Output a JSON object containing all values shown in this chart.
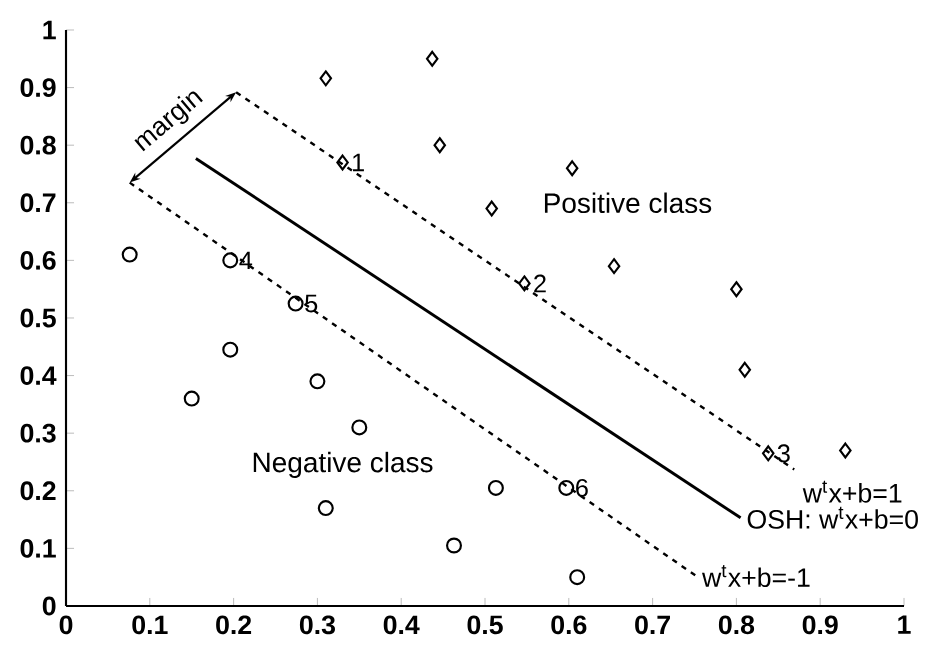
{
  "chart_data": {
    "type": "scatter",
    "xlim": [
      0,
      1
    ],
    "ylim": [
      0,
      1
    ],
    "xticks": [
      0,
      0.1,
      0.2,
      0.3,
      0.4,
      0.5,
      0.6,
      0.7,
      0.8,
      0.9,
      1
    ],
    "yticks": [
      0,
      0.1,
      0.2,
      0.3,
      0.4,
      0.5,
      0.6,
      0.7,
      0.8,
      0.9,
      1
    ],
    "series": [
      {
        "marker": "diamond",
        "color": "#000000",
        "x": [
          0.31,
          0.437,
          0.446,
          0.33,
          0.604,
          0.508,
          0.654,
          0.547,
          0.8,
          0.81,
          0.838,
          0.93
        ],
        "values": [
          0.916,
          0.95,
          0.8,
          0.77,
          0.76,
          0.69,
          0.59,
          0.56,
          0.55,
          0.41,
          0.265,
          0.27
        ]
      },
      {
        "marker": "circle",
        "color": "#000000",
        "x": [
          0.076,
          0.196,
          0.274,
          0.196,
          0.15,
          0.3,
          0.35,
          0.31,
          0.463,
          0.513,
          0.597,
          0.61
        ],
        "values": [
          0.61,
          0.6,
          0.525,
          0.445,
          0.36,
          0.39,
          0.31,
          0.17,
          0.105,
          0.205,
          0.205,
          0.05
        ]
      },
      {
        "type": "line",
        "line_style": "solid",
        "color": "#000000",
        "x": [
          0.155,
          0.805
        ],
        "values": [
          0.777,
          0.153
        ]
      },
      {
        "type": "line",
        "line_style": "dashed",
        "color": "#000000",
        "x": [
          0.203,
          0.869
        ],
        "values": [
          0.892,
          0.237
        ]
      },
      {
        "type": "line",
        "line_style": "dashed",
        "color": "#000000",
        "x": [
          0.076,
          0.752
        ],
        "values": [
          0.735,
          0.052
        ]
      }
    ],
    "annotations": [
      "margin",
      "Positive class",
      "Negative class",
      {
        "text": "1",
        "x": 0.33,
        "y": 0.77
      },
      {
        "text": "2",
        "x": 0.547,
        "y": 0.56
      },
      {
        "text": "3",
        "x": 0.838,
        "y": 0.265
      },
      {
        "text": "4",
        "x": 0.196,
        "y": 0.6
      },
      {
        "text": "5",
        "x": 0.274,
        "y": 0.525
      },
      {
        "text": "6",
        "x": 0.597,
        "y": 0.205
      },
      {
        "text": "w$^{t}$x+b=1",
        "x": 0.869,
        "y": 0.237
      },
      {
        "text": "OSH: w$^{t}$x+b=0",
        "x": 0.805,
        "y": 0.153
      },
      {
        "text": "w$^{t}$x+b=-1",
        "x": 0.752,
        "y": 0.052
      }
    ]
  }
}
